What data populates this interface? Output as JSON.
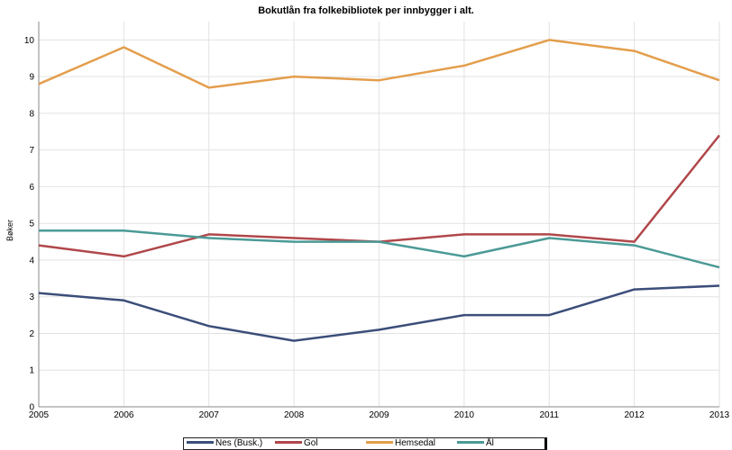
{
  "chart_data": {
    "type": "line",
    "title": "Bokutlån fra folkebibliotek per innbygger i alt.",
    "xlabel": "",
    "ylabel": "Bøker",
    "x": [
      "2005",
      "2006",
      "2007",
      "2008",
      "2009",
      "2010",
      "2011",
      "2012",
      "2013"
    ],
    "ylim": [
      0,
      10.5
    ],
    "yticks": [
      "0",
      "1",
      "2",
      "3",
      "4",
      "5",
      "6",
      "7",
      "8",
      "9",
      "10"
    ],
    "grid": true,
    "legend_position": "bottom",
    "series": [
      {
        "name": "Nes (Busk.)",
        "color": "#3b4e7a",
        "values": [
          3.1,
          2.9,
          2.2,
          1.8,
          2.1,
          2.5,
          2.5,
          3.2,
          3.3
        ]
      },
      {
        "name": "Gol",
        "color": "#b0474a",
        "values": [
          4.4,
          4.1,
          4.7,
          4.6,
          4.5,
          4.7,
          4.7,
          4.5,
          7.4
        ]
      },
      {
        "name": "Hemsedal",
        "color": "#e39e4c",
        "values": [
          8.8,
          9.8,
          8.7,
          9.0,
          8.9,
          9.3,
          10.0,
          9.7,
          8.9
        ]
      },
      {
        "name": "Ål",
        "color": "#4b9a96",
        "values": [
          4.8,
          4.8,
          4.6,
          4.5,
          4.5,
          4.1,
          4.6,
          4.4,
          3.8
        ]
      }
    ]
  }
}
